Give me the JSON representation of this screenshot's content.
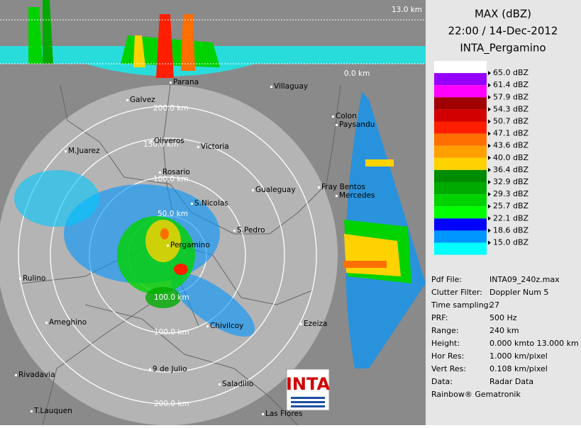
{
  "header": {
    "line1": "MAX (dBZ)",
    "line2": "22:00 / 14-Dec-2012",
    "line3": "INTA_Pergamino"
  },
  "legend": {
    "top_color": "#ffffff",
    "items": [
      {
        "label": "65.0 dBZ",
        "color": "#9600ff"
      },
      {
        "label": "61.4 dBZ",
        "color": "#ff00ff"
      },
      {
        "label": "57.9 dBZ",
        "color": "#a00000"
      },
      {
        "label": "54.3 dBZ",
        "color": "#d20000"
      },
      {
        "label": "50.7 dBZ",
        "color": "#ff1e00"
      },
      {
        "label": "47.1 dBZ",
        "color": "#ff6e00"
      },
      {
        "label": "43.6 dBZ",
        "color": "#ffa000"
      },
      {
        "label": "40.0 dBZ",
        "color": "#ffd200"
      },
      {
        "label": "36.4 dBZ",
        "color": "#008c00"
      },
      {
        "label": "32.9 dBZ",
        "color": "#00aa00"
      },
      {
        "label": "29.3 dBZ",
        "color": "#00d200"
      },
      {
        "label": "25.7 dBZ",
        "color": "#00ff00"
      },
      {
        "label": "22.1 dBZ",
        "color": "#0000ff"
      },
      {
        "label": "18.6 dBZ",
        "color": "#0096ff"
      },
      {
        "label": "15.0 dBZ",
        "color": "#00ffff"
      }
    ]
  },
  "info": [
    {
      "label": "Pdf File:",
      "value": "INTA09_240z.max"
    },
    {
      "label": "Clutter Filter:",
      "value": "Doppler Num 5"
    },
    {
      "label": "Time sampling:",
      "value": "27"
    },
    {
      "label": "PRF:",
      "value": "500 Hz"
    },
    {
      "label": "Range:",
      "value": "240 km"
    },
    {
      "label": "Height:",
      "value": "0.000 kmto 13.000 km"
    },
    {
      "label": "Hor Res:",
      "value": "1.000 km/pixel"
    },
    {
      "label": "Vert Res:",
      "value": "0.108 km/pixel"
    },
    {
      "label": "Data:",
      "value": "Radar Data"
    }
  ],
  "footer": "Rainbow® Gematronik",
  "heights": {
    "top": "13.0 km",
    "bottom": "0.0 km"
  },
  "rings": [
    "200.0 km",
    "150.0 km",
    "100.0 km",
    "50.0 km",
    "100.0 km",
    "100.0 km",
    "200.0 km"
  ],
  "places": [
    "Galvez",
    "Oliveros",
    "Victoria",
    "Rosario",
    "M.Juarez",
    "Gualeguay",
    "S.Nicolas",
    "S.Pedro",
    "Pergamino",
    "Rulino",
    "Ameghino",
    "Chivilcoy",
    "Ezeiza",
    "Rivadavia",
    "9 de Julio",
    "Saladillo",
    "T.Lauquen",
    "Las Flores",
    "Villaguay",
    "Parana",
    "Colon",
    "Paysandu",
    "Fray Bentos",
    "Mercedes"
  ],
  "logo": "INTA"
}
